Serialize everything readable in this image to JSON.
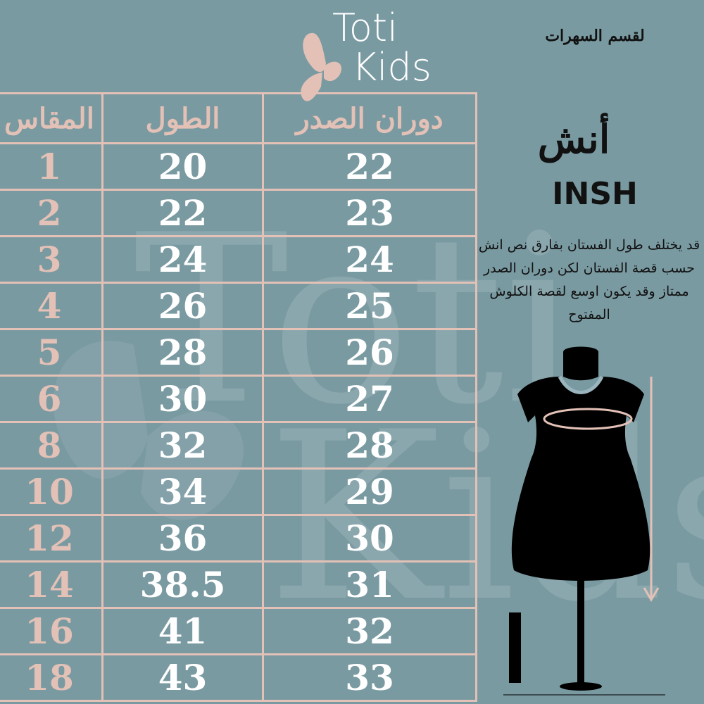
{
  "brand": {
    "line1": "Toti",
    "line2": "Kids"
  },
  "watermark": {
    "line1": "Toti",
    "line2": "Kids"
  },
  "section_title": "لقسم السهرات",
  "unit": {
    "arabic": "أنش",
    "english": "INSH"
  },
  "note": "قد يختلف طول الفستان بفارق نص انش حسب قصة الفستان لكن دوران الصدر ممتاز وقد يكون اوسع لقصة الكلوش المفتوح",
  "colors": {
    "background": "#7a9aa2",
    "accent": "#e3c1b6",
    "text": "#ffffff"
  },
  "table": {
    "headers": [
      "المقاس",
      "الطول",
      "دوران الصدر"
    ],
    "rows": [
      {
        "size": "1",
        "length": "20",
        "chest": "22"
      },
      {
        "size": "2",
        "length": "22",
        "chest": "23"
      },
      {
        "size": "3",
        "length": "24",
        "chest": "24"
      },
      {
        "size": "4",
        "length": "26",
        "chest": "25"
      },
      {
        "size": "5",
        "length": "28",
        "chest": "26"
      },
      {
        "size": "6",
        "length": "30",
        "chest": "27"
      },
      {
        "size": "8",
        "length": "32",
        "chest": "28"
      },
      {
        "size": "10",
        "length": "34",
        "chest": "29"
      },
      {
        "size": "12",
        "length": "36",
        "chest": "30"
      },
      {
        "size": "14",
        "length": "38.5",
        "chest": "31"
      },
      {
        "size": "16",
        "length": "41",
        "chest": "32"
      },
      {
        "size": "18",
        "length": "43",
        "chest": "33"
      }
    ]
  }
}
